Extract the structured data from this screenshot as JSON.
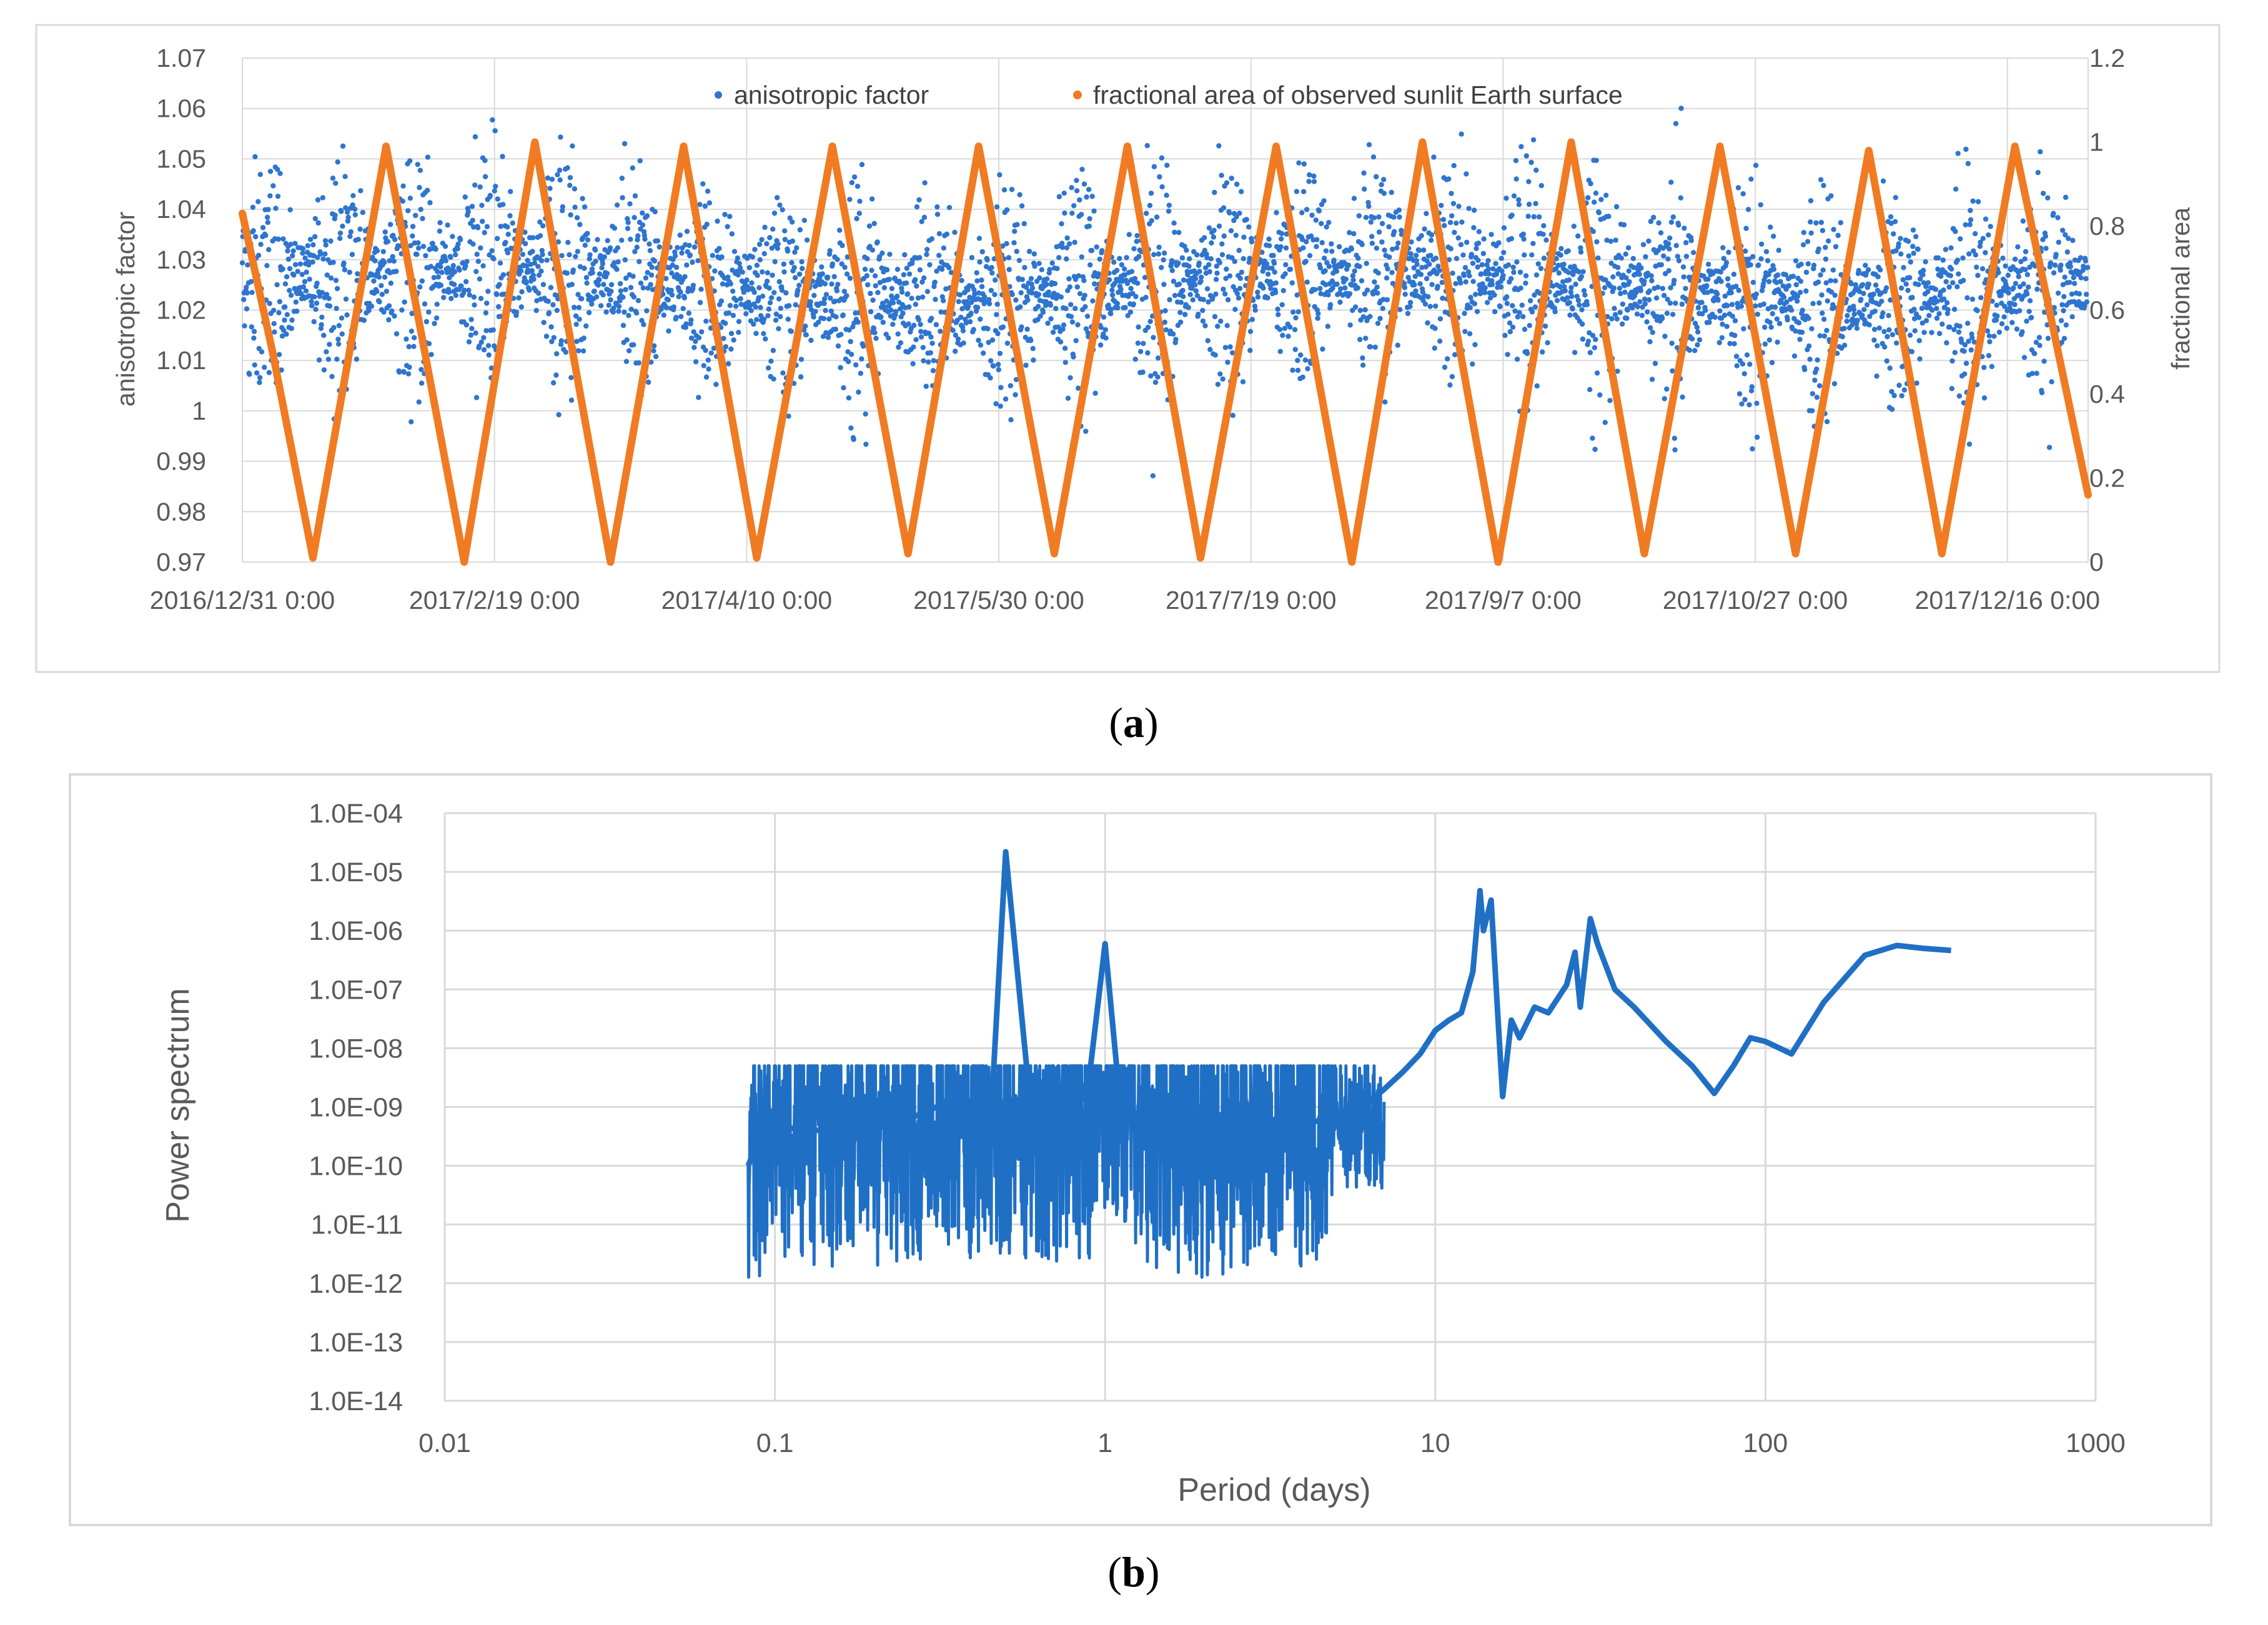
{
  "chart_data": [
    {
      "type": "scatter+line",
      "panel_label_open": "(",
      "panel_label_letter": "a",
      "panel_label_close": ")",
      "title": "",
      "xlabel": "",
      "ylabel": "anisotropic factor",
      "y2label": "fractional area",
      "xlim": [
        "2016/12/31",
        "2018/1/1"
      ],
      "ylim": [
        0.97,
        1.07
      ],
      "y2lim": [
        0,
        1.2
      ],
      "x_ticks": [
        "2016/12/31 0:00",
        "2017/2/19 0:00",
        "2017/4/10 0:00",
        "2017/5/30 0:00",
        "2017/7/19 0:00",
        "2017/9/7 0:00",
        "2017/10/27 0:00",
        "2017/12/16 0:00"
      ],
      "y_ticks": [
        "1.07",
        "1.06",
        "1.05",
        "1.04",
        "1.03",
        "1.02",
        "1.01",
        "1",
        "0.99",
        "0.98",
        "0.97"
      ],
      "y2_ticks": [
        "1.2",
        "1",
        "0.8",
        "0.6",
        "0.4",
        "0.2",
        "0"
      ],
      "legend": {
        "placement": "top",
        "entries": [
          "anisotropic factor",
          "fractional area of observed sunlit Earth surface"
        ]
      },
      "colors": {
        "scatter": "#2E75D0",
        "line": "#F07B22",
        "grid": "#D9D9D9"
      },
      "series": [
        {
          "name": "fractional area of observed sunlit Earth surface",
          "axis": "right",
          "x_days": [
            0,
            6,
            14,
            28.5,
            44,
            58,
            73,
            87.5,
            102,
            117,
            132,
            146,
            161,
            175.5,
            190,
            205,
            220,
            234,
            249,
            263.5,
            278,
            293,
            308,
            322.5,
            337,
            351.5,
            366
          ],
          "values": [
            0.83,
            0.5,
            0.01,
            0.99,
            0.0,
            1.0,
            0.0,
            0.99,
            0.01,
            0.99,
            0.02,
            0.99,
            0.02,
            0.99,
            0.01,
            0.99,
            0.0,
            1.0,
            0.0,
            1.0,
            0.02,
            0.99,
            0.02,
            0.98,
            0.02,
            0.99,
            0.16
          ]
        },
        {
          "name": "anisotropic factor",
          "axis": "left",
          "description_values": {
            "mean": 1.025,
            "typical_min": 0.985,
            "typical_max": 1.06,
            "lunar_period_days": 14.7
          }
        }
      ]
    },
    {
      "type": "line",
      "panel_label_open": "(",
      "panel_label_letter": "b",
      "panel_label_close": ")",
      "title": "",
      "xlabel": "Period (days)",
      "ylabel": "Power spectrum",
      "xscale": "log",
      "yscale": "log",
      "xlim": [
        0.01,
        1000
      ],
      "ylim": [
        1e-14,
        0.0001
      ],
      "x_ticks": [
        "0.01",
        "0.1",
        "1",
        "10",
        "100",
        "1000"
      ],
      "y_ticks": [
        "1.0E-04",
        "1.0E-05",
        "1.0E-06",
        "1.0E-07",
        "1.0E-08",
        "1.0E-09",
        "1.0E-10",
        "1.0E-11",
        "1.0E-12",
        "1.0E-13",
        "1.0E-14"
      ],
      "colors": {
        "line": "#1F6FC5",
        "grid": "#D9D9D9"
      },
      "series": [
        {
          "name": "Power spectrum",
          "x": [
            0.083,
            0.09,
            0.1,
            0.12,
            0.143,
            0.167,
            0.2,
            0.25,
            0.333,
            0.4,
            0.45,
            0.5,
            0.6,
            0.7,
            0.8,
            0.9,
            1.0,
            1.1,
            1.3,
            1.6,
            2.0,
            2.5,
            3.0,
            4.0,
            5.0,
            6.0,
            7.0,
            8.0,
            9.0,
            10.0,
            11.0,
            12.0,
            13.0,
            13.66,
            14.0,
            14.76,
            15.5,
            16.0,
            17.0,
            18.0,
            20.0,
            22.0,
            25.0,
            26.5,
            27.5,
            29.5,
            31.0,
            35.0,
            40.0,
            50.0,
            60.0,
            70.0,
            80.0,
            90.0,
            100.0,
            120.0,
            150.0,
            200.0,
            250.0,
            300.0,
            365.0
          ],
          "values": [
            1e-10,
            3e-10,
            5e-10,
            4e-10,
            4e-10,
            5e-10,
            5e-10,
            6e-10,
            1.2e-09,
            6e-10,
            5e-10,
            2.2e-05,
            6e-10,
            4e-10,
            5e-10,
            4e-09,
            6e-07,
            2e-09,
            5e-10,
            4e-10,
            3e-10,
            3e-10,
            4e-10,
            5e-10,
            7e-10,
            1e-09,
            2e-09,
            4e-09,
            8e-09,
            2e-08,
            3e-08,
            4e-08,
            2e-07,
            4.8e-06,
            1e-06,
            3.3e-06,
            3e-08,
            1.5e-09,
            3e-08,
            1.5e-08,
            5e-08,
            4e-08,
            1.2e-07,
            4.3e-07,
            5e-08,
            1.6e-06,
            6e-07,
            1e-07,
            5e-08,
            1.3e-08,
            5e-09,
            1.7e-09,
            5e-09,
            1.5e-08,
            1.3e-08,
            8e-09,
            6e-08,
            3.8e-07,
            5.6e-07,
            5e-07,
            4.6e-07
          ]
        }
      ]
    }
  ]
}
